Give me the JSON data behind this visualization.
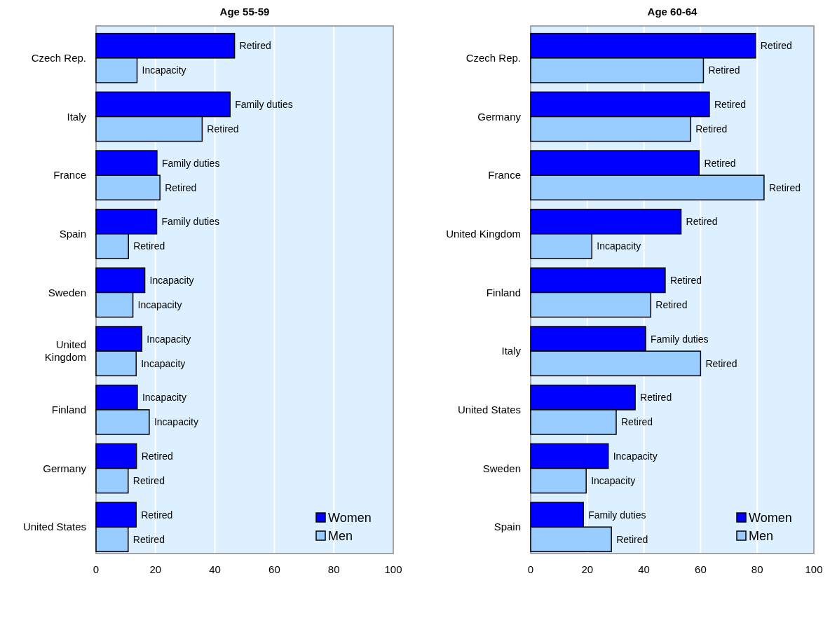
{
  "chart_data": [
    {
      "type": "bar",
      "orientation": "horizontal",
      "title": "Age 55-59",
      "categories": [
        "Czech Rep.",
        "Italy",
        "France",
        "Spain",
        "Sweden",
        "United Kingdom",
        "Finland",
        "Germany",
        "United States"
      ],
      "xlim": [
        0,
        100
      ],
      "xticks": [
        0,
        20,
        40,
        60,
        80,
        100
      ],
      "grid": "x",
      "legend": "bottom right",
      "series": [
        {
          "name": "Women",
          "color": "#0000ff",
          "values": [
            46.6,
            45.1,
            20.5,
            20.4,
            16.4,
            15.4,
            13.9,
            13.6,
            13.5
          ],
          "value_labels": [
            "Retired",
            "Family duties",
            "Family duties",
            "Family duties",
            "Incapacity",
            "Incapacity",
            "Incapacity",
            "Retired",
            "Retired"
          ]
        },
        {
          "name": "Men",
          "color": "#99ccff",
          "values": [
            13.8,
            35.7,
            21.5,
            10.9,
            12.4,
            13.5,
            17.9,
            10.8,
            10.8
          ],
          "value_labels": [
            "Incapacity",
            "Retired",
            "Retired",
            "Retired",
            "Incapacity",
            "Incapacity",
            "Incapacity",
            "Retired",
            "Retired"
          ]
        }
      ]
    },
    {
      "type": "bar",
      "orientation": "horizontal",
      "title": "Age 60-64",
      "categories": [
        "Czech Rep.",
        "Germany",
        "France",
        "United Kingdom",
        "Finland",
        "Italy",
        "United States",
        "Sweden",
        "Spain"
      ],
      "xlim": [
        0,
        100
      ],
      "xticks": [
        0,
        20,
        40,
        60,
        80,
        100
      ],
      "grid": "x",
      "legend": "bottom right",
      "series": [
        {
          "name": "Women",
          "color": "#0000ff",
          "values": [
            79.4,
            63.1,
            59.5,
            53.1,
            47.5,
            40.6,
            36.9,
            27.4,
            18.6
          ],
          "value_labels": [
            "Retired",
            "Retired",
            "Retired",
            "Retired",
            "Retired",
            "Family duties",
            "Retired",
            "Incapacity",
            "Family duties"
          ]
        },
        {
          "name": "Men",
          "color": "#99ccff",
          "values": [
            61.0,
            56.5,
            82.4,
            21.6,
            42.4,
            60.0,
            30.2,
            19.6,
            28.5
          ],
          "value_labels": [
            "Retired",
            "Retired",
            "Retired",
            "Incapacity",
            "Retired",
            "Retired",
            "Retired",
            "Incapacity",
            "Retired"
          ]
        }
      ]
    }
  ]
}
